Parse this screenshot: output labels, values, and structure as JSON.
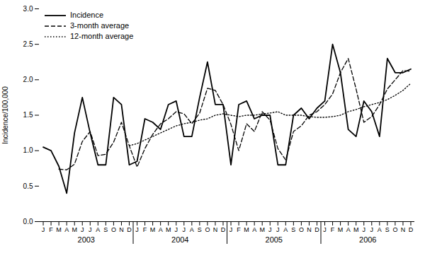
{
  "chart_data": {
    "type": "line",
    "ylabel": "Incidence/100,000",
    "categories": [
      "J",
      "F",
      "M",
      "A",
      "M",
      "J",
      "J",
      "A",
      "S",
      "O",
      "N",
      "D",
      "J",
      "F",
      "M",
      "A",
      "M",
      "J",
      "J",
      "A",
      "S",
      "O",
      "N",
      "D",
      "J",
      "F",
      "M",
      "A",
      "M",
      "J",
      "J",
      "A",
      "S",
      "O",
      "N",
      "D",
      "J",
      "F",
      "M",
      "A",
      "M",
      "J",
      "J",
      "A",
      "S",
      "O",
      "N",
      "D"
    ],
    "x_group_labels": [
      "2003",
      "2004",
      "2005",
      "2006"
    ],
    "ylim": [
      0,
      3
    ],
    "yticks": [
      0,
      0.5,
      1,
      1.5,
      2,
      2.5,
      3
    ],
    "legend": "upper left",
    "series": [
      {
        "name": "Incidence",
        "color": "#000000",
        "line_style": "solid",
        "values": [
          1.05,
          1.0,
          0.78,
          0.4,
          1.25,
          1.75,
          1.25,
          0.8,
          0.8,
          1.75,
          1.65,
          0.8,
          0.85,
          1.45,
          1.4,
          1.3,
          1.65,
          1.7,
          1.2,
          1.2,
          1.75,
          2.25,
          1.65,
          1.65,
          0.8,
          1.65,
          1.7,
          1.45,
          1.5,
          1.5,
          0.8,
          0.8,
          1.5,
          1.6,
          1.45,
          1.6,
          1.7,
          2.5,
          2.1,
          1.3,
          1.2,
          1.7,
          1.55,
          1.2,
          2.3,
          2.1,
          2.1,
          2.15
        ]
      },
      {
        "name": "3-month average",
        "color": "#000000",
        "line_style": "dashed",
        "values": [
          null,
          null,
          0.74,
          0.73,
          0.81,
          1.13,
          1.27,
          0.93,
          0.95,
          1.12,
          1.4,
          1.07,
          0.77,
          1.03,
          1.23,
          1.38,
          1.45,
          1.55,
          1.52,
          1.38,
          1.53,
          1.88,
          1.85,
          1.65,
          1.37,
          1.0,
          1.38,
          1.27,
          1.55,
          1.43,
          1.03,
          0.87,
          1.27,
          1.35,
          1.5,
          1.55,
          1.65,
          1.8,
          2.1,
          2.3,
          1.87,
          1.4,
          1.48,
          1.65,
          1.87,
          2.0,
          2.13,
          2.12
        ]
      },
      {
        "name": "12-month average",
        "color": "#000000",
        "line_style": "dotted",
        "values": [
          null,
          null,
          null,
          null,
          null,
          null,
          null,
          null,
          null,
          null,
          null,
          1.07,
          1.1,
          1.15,
          1.2,
          1.25,
          1.3,
          1.35,
          1.38,
          1.4,
          1.43,
          1.45,
          1.5,
          1.52,
          1.5,
          1.48,
          1.5,
          1.5,
          1.52,
          1.53,
          1.55,
          1.5,
          1.5,
          1.5,
          1.48,
          1.47,
          1.47,
          1.48,
          1.5,
          1.55,
          1.58,
          1.62,
          1.65,
          1.68,
          1.72,
          1.78,
          1.85,
          1.95
        ]
      }
    ]
  }
}
